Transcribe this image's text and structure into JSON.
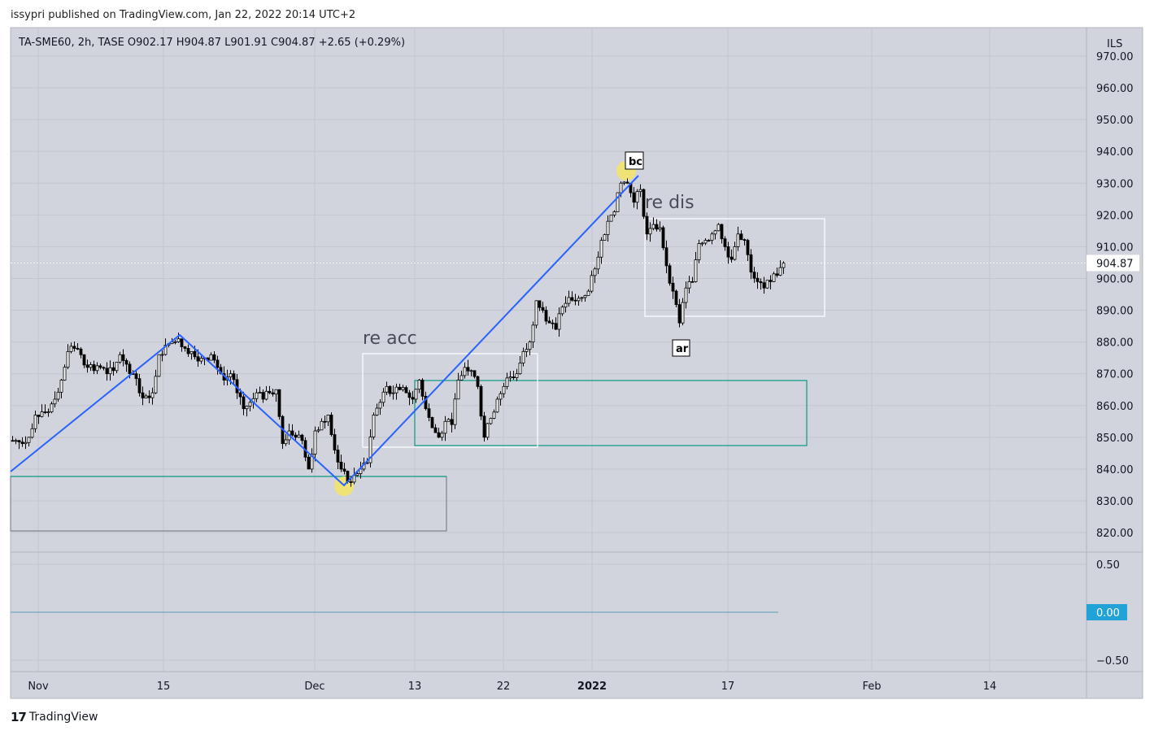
{
  "publisher_line": "issypri published on TradingView.com, Jan 22, 2022 20:14 UTC+2",
  "legend": "TA-SME60, 2h, TASE  O902.17  H904.87  L901.91  C904.87  +2.65 (+0.29%)",
  "footer": {
    "logo_text": "TradingView"
  },
  "colors": {
    "bg": "#d1d4dc",
    "trendline": "#2962ff",
    "box_green": "#089981",
    "box_white": "#ffffff",
    "highlight": "#f2e46b",
    "zero_label": "#22a3d8"
  },
  "chart_data": {
    "type": "candlestick",
    "symbol": "TA-SME60",
    "interval": "2h",
    "exchange": "TASE",
    "currency": "ILS",
    "ylim": [
      815,
      975
    ],
    "price_ticks": [
      "970.00",
      "960.00",
      "950.00",
      "940.00",
      "930.00",
      "920.00",
      "910.00",
      "900.00",
      "890.00",
      "880.00",
      "870.00",
      "860.00",
      "850.00",
      "840.00",
      "830.00",
      "820.00"
    ],
    "last_price": "904.87",
    "time_ticks": [
      {
        "label": "Nov",
        "bold": false
      },
      {
        "label": "15",
        "bold": false
      },
      {
        "label": "Dec",
        "bold": false
      },
      {
        "label": "13",
        "bold": false
      },
      {
        "label": "22",
        "bold": false
      },
      {
        "label": "2022",
        "bold": true
      },
      {
        "label": "17",
        "bold": false
      },
      {
        "label": "Feb",
        "bold": false
      },
      {
        "label": "14",
        "bold": false
      }
    ],
    "closes": [
      849,
      848,
      850,
      857,
      858,
      858,
      862,
      868,
      877,
      878,
      876,
      872,
      871,
      872,
      870,
      871,
      876,
      873,
      870,
      864,
      863,
      864,
      876,
      879,
      880,
      881,
      878,
      877,
      874,
      875,
      876,
      872,
      868,
      870,
      864,
      859,
      861,
      864,
      862,
      864,
      865,
      848,
      852,
      850,
      849,
      840,
      852,
      855,
      857,
      846,
      840,
      836,
      838,
      840,
      842,
      857,
      861,
      866,
      864,
      865,
      864,
      862,
      868,
      859,
      853,
      850,
      855,
      854,
      868,
      872,
      871,
      866,
      850,
      856,
      862,
      866,
      869,
      870,
      877,
      880,
      893,
      890,
      886,
      884,
      891,
      894,
      893,
      894,
      896,
      903,
      912,
      918,
      921,
      930,
      930,
      924,
      928,
      914,
      917,
      916,
      904,
      896,
      886,
      897,
      899,
      911,
      912,
      914,
      917,
      910,
      906,
      914,
      912,
      902,
      899,
      897,
      899,
      901,
      904.87
    ],
    "annotations": {
      "re_acc": "re acc",
      "re_dis": "re dis",
      "bc": "bc",
      "ar": "ar"
    },
    "indicator": {
      "ticks": [
        "0.50",
        "0.00",
        "−0.50"
      ],
      "value_label": "0.00",
      "value": 0
    }
  }
}
